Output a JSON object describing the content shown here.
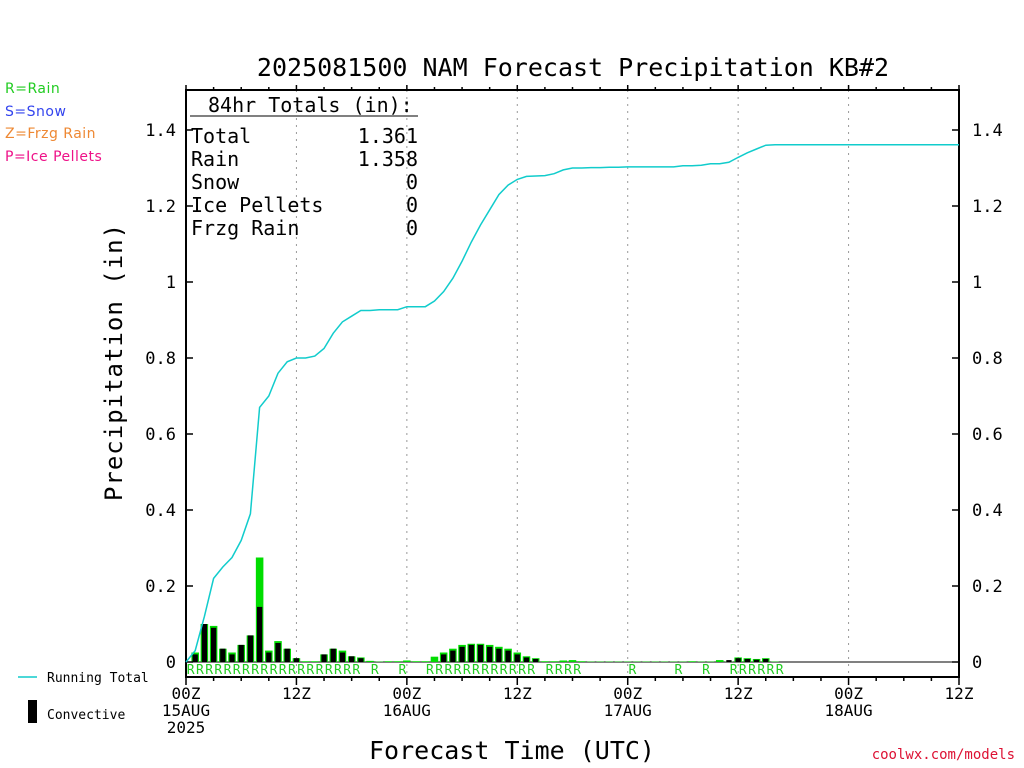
{
  "legend_keys": [
    {
      "label": "R=Rain",
      "color": "#22cc22"
    },
    {
      "label": "S=Snow",
      "color": "#3344ee"
    },
    {
      "label": "Z=Frzg Rain",
      "color": "#ee8833"
    },
    {
      "label": "P=Ice Pellets",
      "color": "#ee1188"
    }
  ],
  "credit": "coolwx.com/models",
  "totals": {
    "header": "84hr Totals (in):",
    "rows": [
      {
        "label": "Total",
        "value": "1.361"
      },
      {
        "label": "Rain",
        "value": "1.358"
      },
      {
        "label": "Snow",
        "value": "0"
      },
      {
        "label": "Ice Pellets",
        "value": "0"
      },
      {
        "label": "Frzg Rain",
        "value": "0"
      }
    ]
  },
  "bottom_legend": {
    "running_total": "Running Total",
    "convective": "Convective"
  },
  "colors": {
    "running_total": "#11cccc",
    "precip_bar": "#00dd00",
    "convective_bar": "#000000",
    "grid": "#999999"
  },
  "chart_data": {
    "type": "bar",
    "title": "2025081500 NAM Forecast Precipitation KB#2",
    "xlabel": "Forecast Time (UTC)",
    "ylabel": "Precipitation (in)",
    "xlim": [
      0,
      84
    ],
    "ylim": [
      0,
      1.5
    ],
    "y_ticks": [
      0,
      0.2,
      0.4,
      0.6,
      0.8,
      1,
      1.2,
      1.4
    ],
    "y_tick_labels": [
      "0",
      "0.2",
      "0.4",
      "0.6",
      "0.8",
      "1",
      "1.2",
      "1.4"
    ],
    "x_ticks": [
      {
        "x": 0,
        "lines": [
          "00Z",
          "15AUG",
          "2025"
        ]
      },
      {
        "x": 12,
        "lines": [
          "12Z"
        ]
      },
      {
        "x": 24,
        "lines": [
          "00Z",
          "16AUG"
        ]
      },
      {
        "x": 36,
        "lines": [
          "12Z"
        ]
      },
      {
        "x": 48,
        "lines": [
          "00Z",
          "17AUG"
        ]
      },
      {
        "x": 60,
        "lines": [
          "12Z"
        ]
      },
      {
        "x": 72,
        "lines": [
          "00Z",
          "18AUG"
        ]
      },
      {
        "x": 84,
        "lines": [
          "12Z"
        ]
      }
    ],
    "grid_x": [
      12,
      24,
      36,
      48,
      60,
      72
    ],
    "grid": true,
    "series": [
      {
        "name": "Running Total",
        "kind": "line",
        "x": [
          0,
          1,
          2,
          3,
          4,
          5,
          6,
          7,
          8,
          9,
          10,
          11,
          12,
          13,
          14,
          15,
          16,
          17,
          18,
          19,
          20,
          21,
          22,
          23,
          24,
          25,
          26,
          27,
          28,
          29,
          30,
          31,
          32,
          33,
          34,
          35,
          36,
          37,
          38,
          39,
          40,
          41,
          42,
          43,
          44,
          45,
          46,
          47,
          48,
          49,
          50,
          51,
          52,
          53,
          54,
          55,
          56,
          57,
          58,
          59,
          60,
          61,
          62,
          63,
          64,
          65,
          66,
          67,
          68,
          69,
          70,
          71,
          72,
          73,
          74,
          75,
          76,
          77,
          78,
          79,
          80,
          81,
          82,
          83,
          84
        ],
        "values": [
          0,
          0.03,
          0.12,
          0.22,
          0.25,
          0.275,
          0.32,
          0.39,
          0.67,
          0.7,
          0.76,
          0.79,
          0.8,
          0.8,
          0.805,
          0.825,
          0.865,
          0.895,
          0.91,
          0.925,
          0.925,
          0.927,
          0.927,
          0.927,
          0.935,
          0.935,
          0.935,
          0.95,
          0.975,
          1.01,
          1.055,
          1.105,
          1.15,
          1.19,
          1.23,
          1.255,
          1.27,
          1.278,
          1.279,
          1.28,
          1.285,
          1.295,
          1.3,
          1.3,
          1.301,
          1.301,
          1.302,
          1.302,
          1.303,
          1.303,
          1.303,
          1.303,
          1.303,
          1.303,
          1.306,
          1.306,
          1.307,
          1.311,
          1.311,
          1.315,
          1.328,
          1.34,
          1.35,
          1.36,
          1.361,
          1.361,
          1.361,
          1.361,
          1.361,
          1.361,
          1.361,
          1.361,
          1.361,
          1.361,
          1.361,
          1.361,
          1.361,
          1.361,
          1.361,
          1.361,
          1.361,
          1.361,
          1.361,
          1.361,
          1.361
        ]
      },
      {
        "name": "Precipitation",
        "kind": "bar",
        "x": [
          1,
          2,
          3,
          4,
          5,
          6,
          7,
          8,
          9,
          10,
          11,
          12,
          13,
          14,
          15,
          16,
          17,
          18,
          19,
          20,
          21,
          22,
          23,
          24,
          25,
          26,
          27,
          28,
          29,
          30,
          31,
          32,
          33,
          34,
          35,
          36,
          37,
          38,
          39,
          40,
          41,
          42,
          43,
          44,
          45,
          46,
          47,
          48,
          49,
          50,
          51,
          52,
          53,
          54,
          55,
          56,
          57,
          58,
          59,
          60,
          61,
          62,
          63,
          64
        ],
        "values": [
          0.025,
          0.1,
          0.095,
          0.035,
          0.025,
          0.045,
          0.07,
          0.275,
          0.03,
          0.055,
          0.035,
          0.01,
          0.002,
          0.002,
          0.02,
          0.035,
          0.03,
          0.015,
          0.012,
          0.003,
          0.001,
          0.002,
          0.002,
          0.004,
          0.002,
          0.002,
          0.014,
          0.025,
          0.035,
          0.045,
          0.048,
          0.048,
          0.045,
          0.04,
          0.035,
          0.025,
          0.015,
          0.01,
          0.002,
          0.002,
          0.004,
          0.005,
          0.002,
          0.001,
          0.001,
          0.001,
          0.001,
          0.001,
          0.001,
          0.001,
          0.001,
          0.001,
          0.001,
          0.001,
          0.002,
          0.001,
          0.001,
          0.005,
          0.001,
          0.012,
          0.01,
          0.008,
          0.01,
          0.001
        ]
      },
      {
        "name": "Convective",
        "kind": "bar",
        "x": [
          1,
          2,
          3,
          4,
          5,
          6,
          7,
          8,
          9,
          10,
          11,
          12,
          15,
          16,
          17,
          18,
          19,
          28,
          29,
          30,
          31,
          32,
          33,
          34,
          35,
          36,
          37,
          38,
          59,
          60,
          61,
          62,
          63
        ],
        "values": [
          0.02,
          0.1,
          0.09,
          0.035,
          0.02,
          0.045,
          0.07,
          0.145,
          0.025,
          0.05,
          0.035,
          0.01,
          0.02,
          0.035,
          0.025,
          0.015,
          0.01,
          0.02,
          0.03,
          0.04,
          0.045,
          0.045,
          0.04,
          0.035,
          0.03,
          0.02,
          0.012,
          0.008,
          0.005,
          0.01,
          0.008,
          0.006,
          0.008
        ]
      }
    ],
    "type_markers": {
      "text": "R",
      "x": [
        1,
        2,
        3,
        4,
        5,
        6,
        7,
        8,
        9,
        10,
        11,
        12,
        13,
        14,
        15,
        16,
        17,
        18,
        19,
        21,
        24,
        27,
        28,
        29,
        30,
        31,
        32,
        33,
        34,
        35,
        36,
        37,
        38,
        40,
        41,
        42,
        43,
        49,
        54,
        57,
        60,
        61,
        62,
        63,
        64,
        65
      ]
    }
  }
}
